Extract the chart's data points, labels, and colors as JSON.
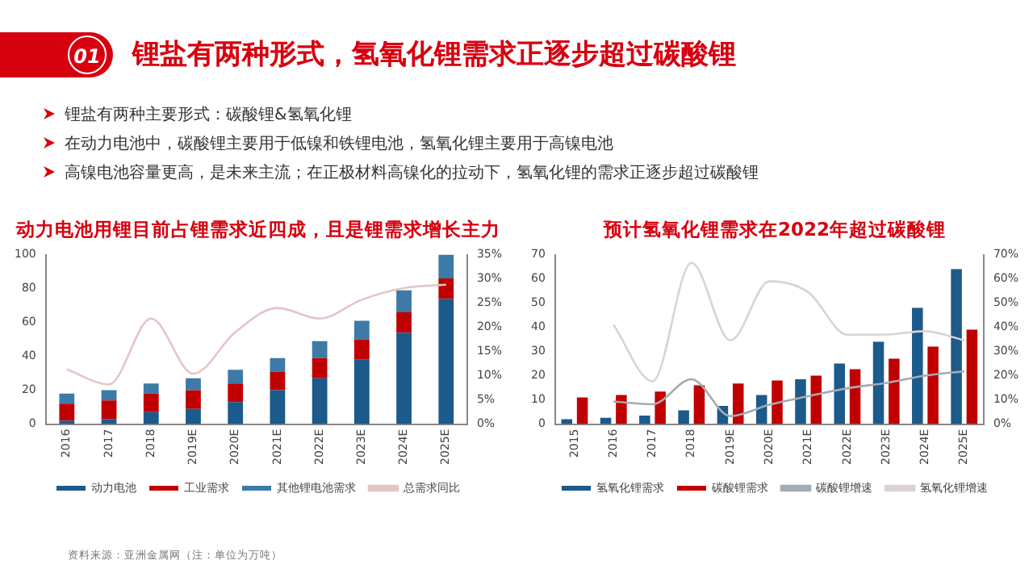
{
  "chart_data": [
    {
      "type": "other",
      "title": "锂盐有两种形式，氢氧化锂需求正逐步超过碳酸锂",
      "annotations": [
        "01",
        "锂盐有两种主要形式：碳酸锂&氢氧化锂",
        "在动力电池中，碳酸锂主要用于低镍和铁锂电池，氢氧化锂主要用于高镍电池",
        "高镍电池容量更高，是未来主流；在正极材料高镍化的拉动下，氢氧化锂的需求正逐步超过碳酸锂",
        "资料来源：亚洲金属网（注：单位为万吨）"
      ]
    },
    {
      "type": "bar",
      "title": "动力电池用锂目前占锂需求近四成，且是锂需求增长主力",
      "stacked": true,
      "legend": "bottom",
      "grid": false,
      "marker": "none",
      "categories": [
        "2016",
        "2017",
        "2018",
        "2019E",
        "2020E",
        "2021E",
        "2022E",
        "2023E",
        "2024E",
        "2025E"
      ],
      "series": [
        {
          "name": "动力电池",
          "color": "#1b5a8a",
          "values": [
            2,
            3,
            7,
            9,
            13,
            20,
            27,
            38,
            54,
            74
          ]
        },
        {
          "name": "工业需求",
          "color": "#c00000",
          "values": [
            10,
            11,
            11,
            11,
            11,
            11,
            12,
            12,
            12,
            12
          ]
        },
        {
          "name": "其他锂电池需求",
          "color": "#3d7aa8",
          "values": [
            6,
            6,
            6,
            7,
            8,
            8,
            10,
            11,
            13,
            14
          ]
        },
        {
          "name": "总需求同比",
          "type": "line",
          "axis": "y2",
          "color": "#e6c4c4",
          "values": [
            11.3,
            8.2,
            21.8,
            10.4,
            19,
            24,
            21.8,
            25.7,
            28.1,
            28.8
          ]
        }
      ],
      "ylim": [
        0,
        100
      ],
      "yticks": [
        0,
        20,
        40,
        60,
        80,
        100
      ],
      "y2lim": [
        0,
        35
      ],
      "y2ticks": [
        {
          "value": 0,
          "label": "0%"
        },
        {
          "value": 5,
          "label": "5%"
        },
        {
          "value": 10,
          "label": "10%"
        },
        {
          "value": 15,
          "label": "15%"
        },
        {
          "value": 20,
          "label": "20%"
        },
        {
          "value": 25,
          "label": "25%"
        },
        {
          "value": 30,
          "label": "30%"
        },
        {
          "value": 35,
          "label": "35%"
        }
      ]
    },
    {
      "type": "bar",
      "title": "预计氢氧化锂需求在2022年超过碳酸锂",
      "legend": "bottom",
      "grid": false,
      "marker": "none",
      "categories": [
        "2015",
        "2016",
        "2017",
        "2018",
        "2019E",
        "2020E",
        "2021E",
        "2022E",
        "2023E",
        "2024E",
        "2025E"
      ],
      "series": [
        {
          "name": "氢氧化锂需求",
          "color": "#1b5a8a",
          "values": [
            2,
            2.6,
            3.5,
            5.7,
            7.5,
            12,
            18.5,
            25,
            34,
            48,
            64
          ]
        },
        {
          "name": "碳酸锂需求",
          "color": "#c00000",
          "values": [
            11,
            12,
            13.4,
            16,
            16.8,
            18,
            20,
            22.7,
            27,
            32,
            39
          ]
        },
        {
          "name": "碳酸锂增速",
          "type": "line",
          "axis": "y2",
          "color": "#a3abb3",
          "values": [
            null,
            9.3,
            8.2,
            18.5,
            3.3,
            8,
            11.5,
            14.8,
            17,
            20,
            21.8
          ]
        },
        {
          "name": "氢氧化锂增速",
          "type": "line",
          "axis": "y2",
          "color": "#dcd2d2",
          "values": [
            null,
            41,
            17.7,
            66.6,
            34.6,
            59,
            54.5,
            36.9,
            37,
            38.4,
            34.6
          ]
        }
      ],
      "ylim": [
        0,
        70
      ],
      "yticks": [
        0,
        10,
        20,
        30,
        40,
        50,
        60,
        70
      ],
      "y2lim": [
        0,
        70
      ],
      "y2ticks": [
        {
          "value": 0,
          "label": "0%"
        },
        {
          "value": 10,
          "label": "10%"
        },
        {
          "value": 20,
          "label": "20%"
        },
        {
          "value": 30,
          "label": "30%"
        },
        {
          "value": 40,
          "label": "40%"
        },
        {
          "value": 50,
          "label": "50%"
        },
        {
          "value": 60,
          "label": "60%"
        },
        {
          "value": 70,
          "label": "70%"
        }
      ]
    }
  ]
}
